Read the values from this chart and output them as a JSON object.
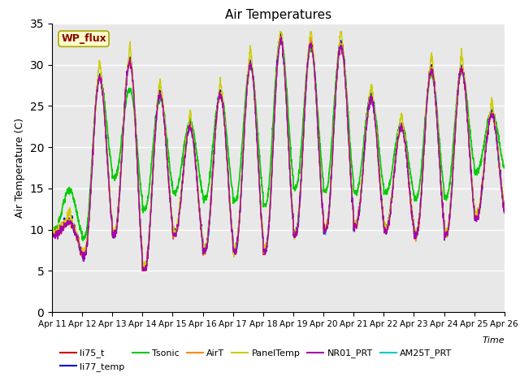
{
  "title": "Air Temperatures",
  "xlabel": "Time",
  "ylabel": "Air Temperature (C)",
  "ylim": [
    0,
    35
  ],
  "yticks": [
    0,
    5,
    10,
    15,
    20,
    25,
    30,
    35
  ],
  "x_labels": [
    "Apr 11",
    "Apr 12",
    "Apr 13",
    "Apr 14",
    "Apr 15",
    "Apr 16",
    "Apr 17",
    "Apr 18",
    "Apr 19",
    "Apr 20",
    "Apr 21",
    "Apr 22",
    "Apr 23",
    "Apr 24",
    "Apr 25",
    "Apr 26"
  ],
  "series": {
    "li75_t": {
      "color": "#cc0000",
      "lw": 1.0
    },
    "li77_temp": {
      "color": "#0000cc",
      "lw": 1.0
    },
    "Tsonic": {
      "color": "#00cc00",
      "lw": 1.2
    },
    "AirT": {
      "color": "#ff8800",
      "lw": 1.0
    },
    "PanelTemp": {
      "color": "#cccc00",
      "lw": 1.0
    },
    "NR01_PRT": {
      "color": "#aa00aa",
      "lw": 1.0
    },
    "AM25T_PRT": {
      "color": "#00cccc",
      "lw": 1.2
    }
  },
  "legend_order": [
    "li75_t",
    "li77_temp",
    "Tsonic",
    "AirT",
    "PanelTemp",
    "NR01_PRT",
    "AM25T_PRT"
  ],
  "annotation_text": "WP_flux",
  "bg_color": "#e8e8e8",
  "grid_color": "#ffffff"
}
